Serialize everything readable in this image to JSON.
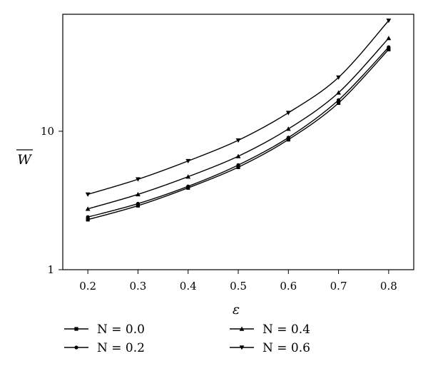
{
  "chart_data": {
    "type": "line",
    "title": "",
    "xlabel": "ε",
    "ylabel": "W",
    "ylabel_overline": true,
    "yscale": "log",
    "xlim": [
      0.15,
      0.85
    ],
    "ylim": [
      1,
      70
    ],
    "x_ticks": [
      0.2,
      0.3,
      0.4,
      0.5,
      0.6,
      0.7,
      0.8
    ],
    "x_tick_labels": [
      "0.2",
      "0.3",
      "0.4",
      "0.5",
      "0.6",
      "0.7",
      "0.8"
    ],
    "y_ticks": [
      1,
      10
    ],
    "y_tick_labels": [
      "1",
      "10"
    ],
    "grid": false,
    "legend_position": "bottom",
    "x": [
      0.2,
      0.3,
      0.4,
      0.5,
      0.6,
      0.7,
      0.8
    ],
    "series": [
      {
        "name": "N = 0.0",
        "marker": "square",
        "values": [
          2.3,
          2.9,
          3.9,
          5.5,
          8.7,
          16.0,
          39.0
        ]
      },
      {
        "name": "N = 0.2",
        "marker": "circle",
        "values": [
          2.4,
          3.0,
          4.0,
          5.7,
          9.0,
          16.8,
          40.5
        ]
      },
      {
        "name": "N = 0.4",
        "marker": "triangle-up",
        "values": [
          2.75,
          3.5,
          4.7,
          6.6,
          10.4,
          19.0,
          47.0
        ]
      },
      {
        "name": "N = 0.6",
        "marker": "triangle-down",
        "values": [
          3.5,
          4.5,
          6.1,
          8.6,
          13.6,
          24.5,
          63.0
        ]
      }
    ]
  }
}
